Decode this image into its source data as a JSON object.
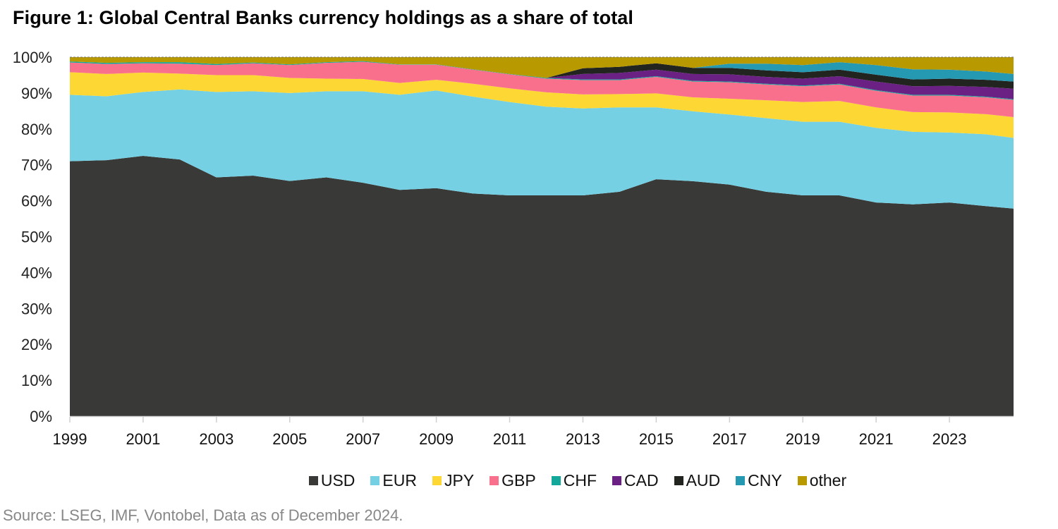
{
  "title": "Figure 1: Global Central Banks currency holdings as a share of total",
  "source": "Source: LSEG,  IMF, Vontobel, Data as of  December 2024.",
  "chart_data": {
    "type": "area",
    "stacked": true,
    "title": "Figure 1: Global Central Banks currency holdings as a share of total",
    "xlabel": "",
    "ylabel": "",
    "ylim": [
      0,
      100
    ],
    "y_ticks": [
      "0%",
      "10%",
      "20%",
      "30%",
      "40%",
      "50%",
      "60%",
      "70%",
      "80%",
      "90%",
      "100%"
    ],
    "x_ticks": [
      "1999",
      "2001",
      "2003",
      "2005",
      "2007",
      "2009",
      "2011",
      "2013",
      "2015",
      "2017",
      "2019",
      "2021",
      "2023"
    ],
    "legend_position": "bottom",
    "grid": false,
    "x": [
      1999,
      2000,
      2001,
      2002,
      2003,
      2004,
      2005,
      2006,
      2007,
      2008,
      2009,
      2010,
      2011,
      2012,
      2013,
      2014,
      2015,
      2016,
      2017,
      2018,
      2019,
      2020,
      2021,
      2022,
      2023,
      2024,
      2024.75
    ],
    "series": [
      {
        "name": "USD",
        "color": "#393a37",
        "values": [
          71.0,
          71.3,
          72.5,
          71.5,
          66.5,
          67.0,
          65.5,
          66.5,
          65.0,
          63.0,
          63.5,
          62.0,
          61.5,
          61.5,
          61.5,
          62.5,
          66.0,
          65.5,
          64.5,
          62.5,
          61.5,
          61.5,
          59.5,
          59.0,
          59.5,
          58.5,
          57.8
        ]
      },
      {
        "name": "EUR",
        "color": "#75d0e4",
        "values": [
          18.5,
          17.8,
          17.8,
          19.5,
          23.8,
          23.5,
          24.5,
          24.0,
          25.5,
          26.5,
          27.2,
          27.0,
          26.0,
          24.7,
          24.2,
          23.5,
          20.0,
          19.5,
          19.5,
          20.5,
          20.5,
          20.5,
          20.8,
          20.2,
          19.5,
          20.0,
          19.7
        ]
      },
      {
        "name": "JPY",
        "color": "#fdd835",
        "values": [
          6.3,
          6.2,
          5.4,
          4.4,
          4.7,
          4.5,
          4.2,
          3.5,
          3.4,
          3.3,
          3.0,
          3.6,
          3.8,
          4.0,
          3.9,
          3.7,
          3.9,
          3.9,
          4.4,
          5.0,
          5.5,
          5.8,
          5.7,
          5.5,
          5.6,
          5.6,
          5.8
        ]
      },
      {
        "name": "GBP",
        "color": "#f9708d",
        "values": [
          2.7,
          2.8,
          2.6,
          2.8,
          2.8,
          3.3,
          3.6,
          4.4,
          4.8,
          5.1,
          4.2,
          3.9,
          3.9,
          3.8,
          4.0,
          3.9,
          4.6,
          4.4,
          4.6,
          4.4,
          4.4,
          4.6,
          4.6,
          4.6,
          4.7,
          4.7,
          4.8
        ]
      },
      {
        "name": "CHF",
        "color": "#14a89b",
        "values": [
          0.3,
          0.3,
          0.3,
          0.4,
          0.3,
          0.2,
          0.2,
          0.2,
          0.2,
          0.1,
          0.1,
          0.1,
          0.1,
          0.2,
          0.2,
          0.2,
          0.2,
          0.2,
          0.2,
          0.2,
          0.2,
          0.2,
          0.2,
          0.2,
          0.2,
          0.2,
          0.2
        ]
      },
      {
        "name": "CAD",
        "color": "#6b2183",
        "values": [
          0,
          0,
          0,
          0,
          0,
          0,
          0,
          0,
          0,
          0,
          0,
          0,
          0,
          0,
          1.5,
          1.8,
          1.8,
          1.9,
          2.0,
          1.9,
          1.9,
          2.1,
          2.4,
          2.4,
          2.5,
          2.7,
          2.9
        ]
      },
      {
        "name": "AUD",
        "color": "#222420",
        "values": [
          0,
          0,
          0,
          0,
          0,
          0,
          0,
          0,
          0,
          0,
          0,
          0,
          0,
          0,
          1.6,
          1.7,
          1.8,
          1.7,
          1.8,
          1.8,
          1.8,
          1.8,
          1.9,
          1.9,
          2.0,
          2.0,
          2.0
        ]
      },
      {
        "name": "CNY",
        "color": "#2699b2",
        "values": [
          0,
          0,
          0,
          0,
          0,
          0,
          0,
          0,
          0,
          0,
          0,
          0,
          0,
          0,
          0,
          0,
          0,
          0,
          1.2,
          1.9,
          2.0,
          2.1,
          2.7,
          2.8,
          2.5,
          2.3,
          2.1
        ]
      },
      {
        "name": "other",
        "color": "#b99900",
        "values": [
          1.2,
          1.6,
          1.4,
          1.4,
          1.9,
          1.5,
          2.0,
          1.4,
          1.1,
          2.0,
          2.0,
          3.4,
          4.7,
          5.8,
          3.1,
          2.7,
          1.7,
          3.0,
          1.8,
          1.8,
          2.2,
          1.4,
          2.2,
          3.4,
          3.5,
          4.0,
          4.7
        ]
      }
    ]
  },
  "legend": [
    {
      "label": "USD",
      "color": "#393a37"
    },
    {
      "label": "EUR",
      "color": "#75d0e4"
    },
    {
      "label": "JPY",
      "color": "#fdd835"
    },
    {
      "label": "GBP",
      "color": "#f9708d"
    },
    {
      "label": "CHF",
      "color": "#14a89b"
    },
    {
      "label": "CAD",
      "color": "#6b2183"
    },
    {
      "label": "AUD",
      "color": "#222420"
    },
    {
      "label": "CNY",
      "color": "#2699b2"
    },
    {
      "label": "other",
      "color": "#b99900"
    }
  ]
}
